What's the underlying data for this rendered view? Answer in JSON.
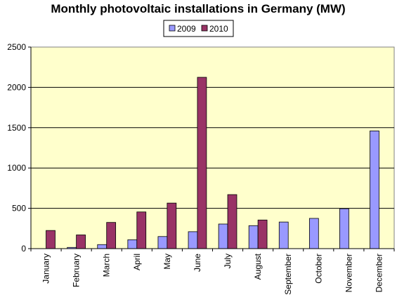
{
  "chart_data": {
    "type": "bar",
    "title": "Monthly photovoltaic installations in Germany (MW)",
    "xlabel": "",
    "ylabel": "",
    "categories": [
      "January",
      "February",
      "March",
      "April",
      "May",
      "June",
      "July",
      "August",
      "September",
      "October",
      "November",
      "December"
    ],
    "series": [
      {
        "name": "2009",
        "color": "#9999ff",
        "values": [
          0,
          15,
          50,
          110,
          150,
          210,
          305,
          285,
          330,
          375,
          495,
          1460
        ]
      },
      {
        "name": "2010",
        "color": "#993366",
        "values": [
          225,
          170,
          325,
          455,
          565,
          2125,
          670,
          355,
          null,
          null,
          null,
          null
        ]
      }
    ],
    "ylim": [
      0,
      2500
    ],
    "yticks": [
      0,
      500,
      1000,
      1500,
      2000,
      2500
    ],
    "grid": true,
    "legend_position": "top-center",
    "plot_background": "#ffffcc"
  }
}
